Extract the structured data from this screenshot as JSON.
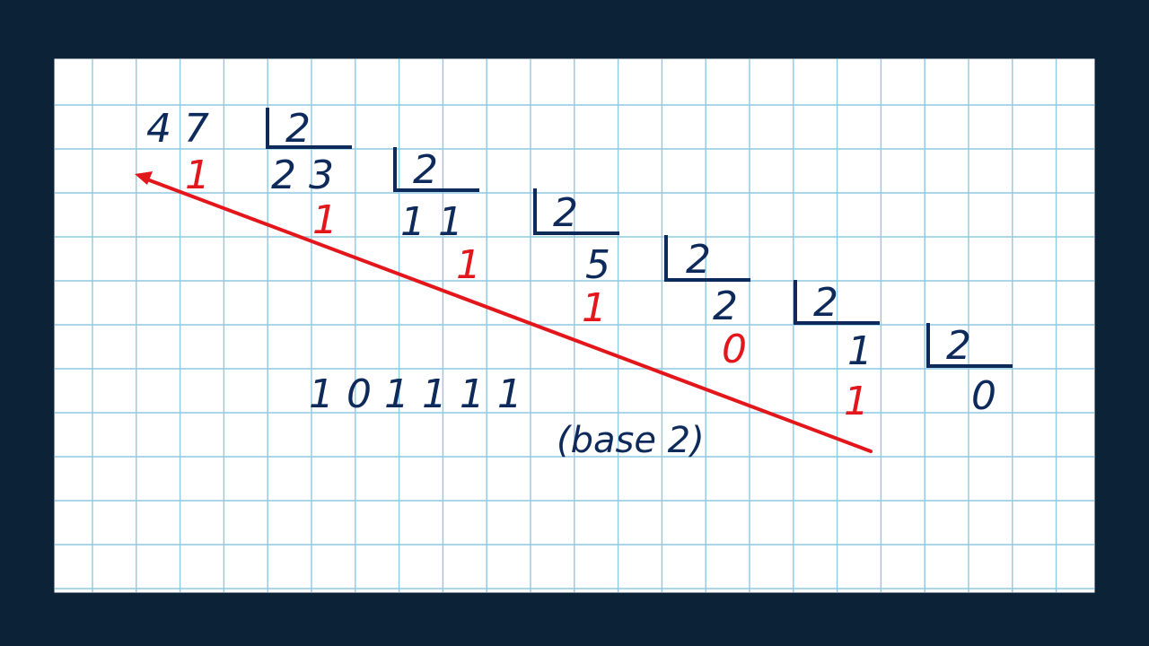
{
  "colors": {
    "background": "#0c2236",
    "paper": "#ffffff",
    "grid": "#8fc9e4",
    "ink": "#0e2a5a",
    "remainder": "#e3171b",
    "arrow": "#e3171b"
  },
  "divisor": "2",
  "steps": [
    {
      "dividend": "4 7",
      "remainder": "1"
    },
    {
      "dividend": "2 3",
      "remainder": "1"
    },
    {
      "dividend": "1 1",
      "remainder": "1"
    },
    {
      "dividend": "5",
      "remainder": "1"
    },
    {
      "dividend": "2",
      "remainder": "0"
    },
    {
      "dividend": "1",
      "remainder": "1"
    },
    {
      "dividend": "0",
      "remainder": ""
    }
  ],
  "result": {
    "digits": "1 0 1 1 1 1",
    "base_label": "(base 2)"
  },
  "arrow_icon": "arrow-up-left-icon"
}
